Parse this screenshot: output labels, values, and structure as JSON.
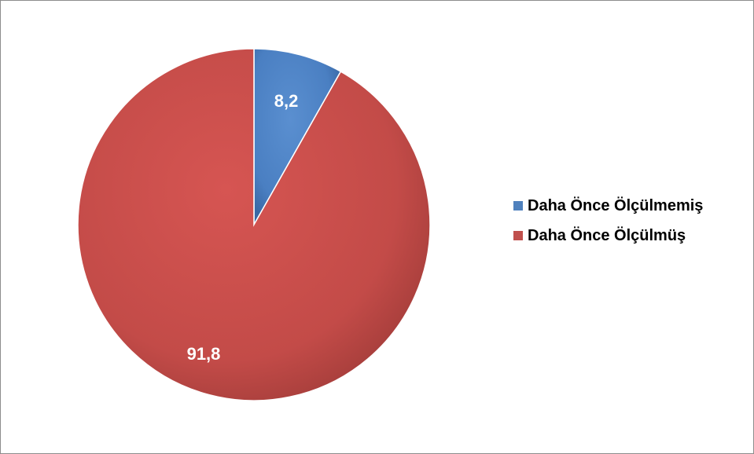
{
  "chart_data": {
    "type": "pie",
    "categories": [
      "Daha Önce Ölçülmemiş",
      "Daha Önce Ölçülmüş"
    ],
    "values": [
      8.2,
      91.8
    ],
    "value_labels": [
      "8,2",
      "91,8"
    ],
    "colors": [
      "#4f81bd",
      "#c0504d"
    ],
    "legend_position": "right",
    "title": ""
  },
  "legend": {
    "items": [
      {
        "label": "Daha Önce Ölçülmemiş",
        "color": "#4f81bd"
      },
      {
        "label": "Daha Önce Ölçülmüş",
        "color": "#c0504d"
      }
    ]
  }
}
